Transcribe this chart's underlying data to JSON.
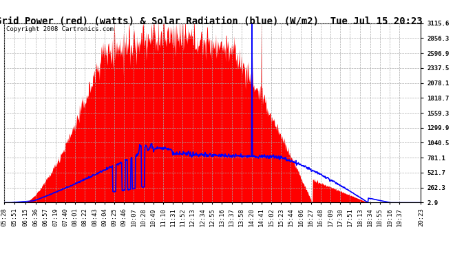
{
  "title": "Grid Power (red) (watts) & Solar Radiation (blue) (W/m2)  Tue Jul 15 20:23",
  "copyright": "Copyright 2008 Cartronics.com",
  "bg_color": "#ffffff",
  "plot_bg_color": "#ffffff",
  "grid_color": "#aaaaaa",
  "red_color": "#ff0000",
  "blue_color": "#0000ff",
  "ymin": 2.9,
  "ymax": 3115.6,
  "yticks": [
    2.9,
    262.3,
    521.7,
    781.1,
    1040.5,
    1299.9,
    1559.3,
    1818.7,
    2078.1,
    2337.5,
    2596.9,
    2856.3,
    3115.6
  ],
  "x_times": [
    "05:28",
    "05:51",
    "06:15",
    "06:36",
    "06:57",
    "07:19",
    "07:40",
    "08:01",
    "08:22",
    "08:43",
    "09:04",
    "09:25",
    "09:46",
    "10:07",
    "10:28",
    "10:49",
    "11:10",
    "11:31",
    "11:52",
    "12:13",
    "12:34",
    "12:55",
    "13:16",
    "13:37",
    "13:58",
    "14:20",
    "14:41",
    "15:02",
    "15:23",
    "15:44",
    "16:06",
    "16:27",
    "16:48",
    "17:09",
    "17:30",
    "17:51",
    "18:13",
    "18:34",
    "18:55",
    "19:16",
    "19:37",
    "20:23"
  ],
  "title_fontsize": 10,
  "copyright_fontsize": 6.5,
  "tick_fontsize": 6.5
}
